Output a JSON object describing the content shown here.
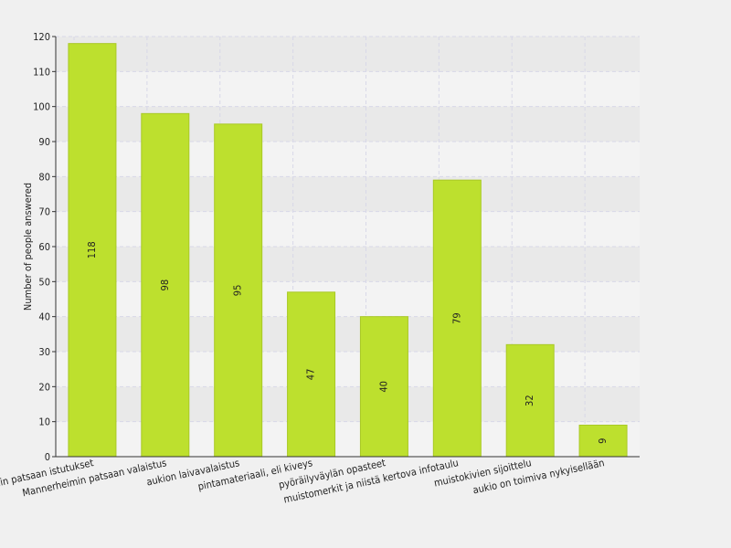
{
  "chart_data": {
    "type": "bar",
    "title": "",
    "xlabel": "",
    "ylabel": "Number of people answered",
    "ylim": [
      0,
      120
    ],
    "yticks": [
      0,
      10,
      20,
      30,
      40,
      50,
      60,
      70,
      80,
      90,
      100,
      110,
      120
    ],
    "grid": true,
    "legend": "none",
    "categories": [
      "Mannerheimin patsaan istutukset",
      "Mannerheimin patsaan valaistus",
      "aukion laivavalaistus",
      "pintamateriaali, eli kiveys",
      "pyöräilyväylän opasteet",
      "muistomerkit ja niistä kertova infotaulu",
      "muistokivien sijoittelu",
      "aukio on toimiva nykyisellään"
    ],
    "values": [
      118,
      98,
      95,
      47,
      40,
      79,
      32,
      9
    ],
    "colors": {
      "bar": "#bde02e",
      "bar_edge": "#a9c926",
      "band_dark": "#e9e9e9",
      "band_light": "#f3f3f3",
      "grid": "#d8d8e8",
      "axis": "#333333"
    }
  }
}
